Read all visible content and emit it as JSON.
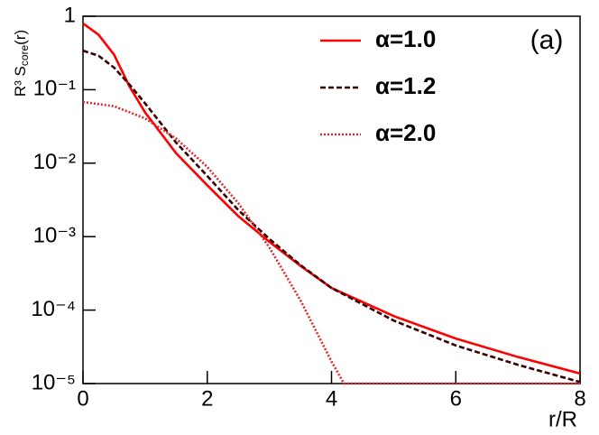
{
  "chart_data": {
    "type": "line",
    "annotation": "(a)",
    "x_label": "r/R",
    "y_label": {
      "main": "R³ S",
      "sub": "core",
      "end": "(r)"
    },
    "xlim": [
      0,
      8
    ],
    "xticks": [
      0,
      2,
      4,
      6,
      8
    ],
    "ylim": [
      1e-05,
      1
    ],
    "y_scale": "log",
    "yticks": [
      {
        "value": 1e-05,
        "label": "10⁻⁵"
      },
      {
        "value": 0.0001,
        "label": "10⁻⁴"
      },
      {
        "value": 0.001,
        "label": "10⁻³"
      },
      {
        "value": 0.01,
        "label": "10⁻²"
      },
      {
        "value": 0.1,
        "label": "10⁻¹"
      },
      1
    ],
    "legend": "upper right",
    "series": [
      {
        "name": "α=1.0",
        "color": "#ff0000",
        "line_style": "solid",
        "x": [
          0,
          0.25,
          0.5,
          0.75,
          1,
          1.5,
          2,
          2.5,
          3,
          3.5,
          4,
          5,
          6,
          7,
          8
        ],
        "values": [
          0.8,
          0.56,
          0.3,
          0.11,
          0.049,
          0.0136,
          0.005,
          0.0019,
          0.00085,
          0.0004,
          0.0002,
          8.3e-05,
          4.1e-05,
          2.3e-05,
          1.37e-05
        ]
      },
      {
        "name": "α=1.2",
        "color": "#3a0000",
        "line_style": "dashed",
        "x": [
          0,
          0.25,
          0.5,
          0.75,
          1,
          1.5,
          2,
          2.5,
          3,
          3.5,
          4,
          5,
          6,
          7,
          8
        ],
        "values": [
          0.34,
          0.29,
          0.2,
          0.117,
          0.065,
          0.019,
          0.0067,
          0.0023,
          0.00093,
          0.00041,
          0.0002,
          7.2e-05,
          3.3e-05,
          1.8e-05,
          1.05e-05
        ]
      },
      {
        "name": "α=2.0",
        "color": "#e02828",
        "line_style": "dotted",
        "x": [
          0,
          0.5,
          1,
          1.5,
          2,
          2.5,
          3,
          3.5,
          4,
          4.2,
          8
        ],
        "values": [
          0.068,
          0.0596,
          0.0407,
          0.0216,
          0.0089,
          0.00285,
          0.00071,
          0.000136,
          2e-05,
          1e-05,
          1e-05
        ]
      }
    ]
  }
}
